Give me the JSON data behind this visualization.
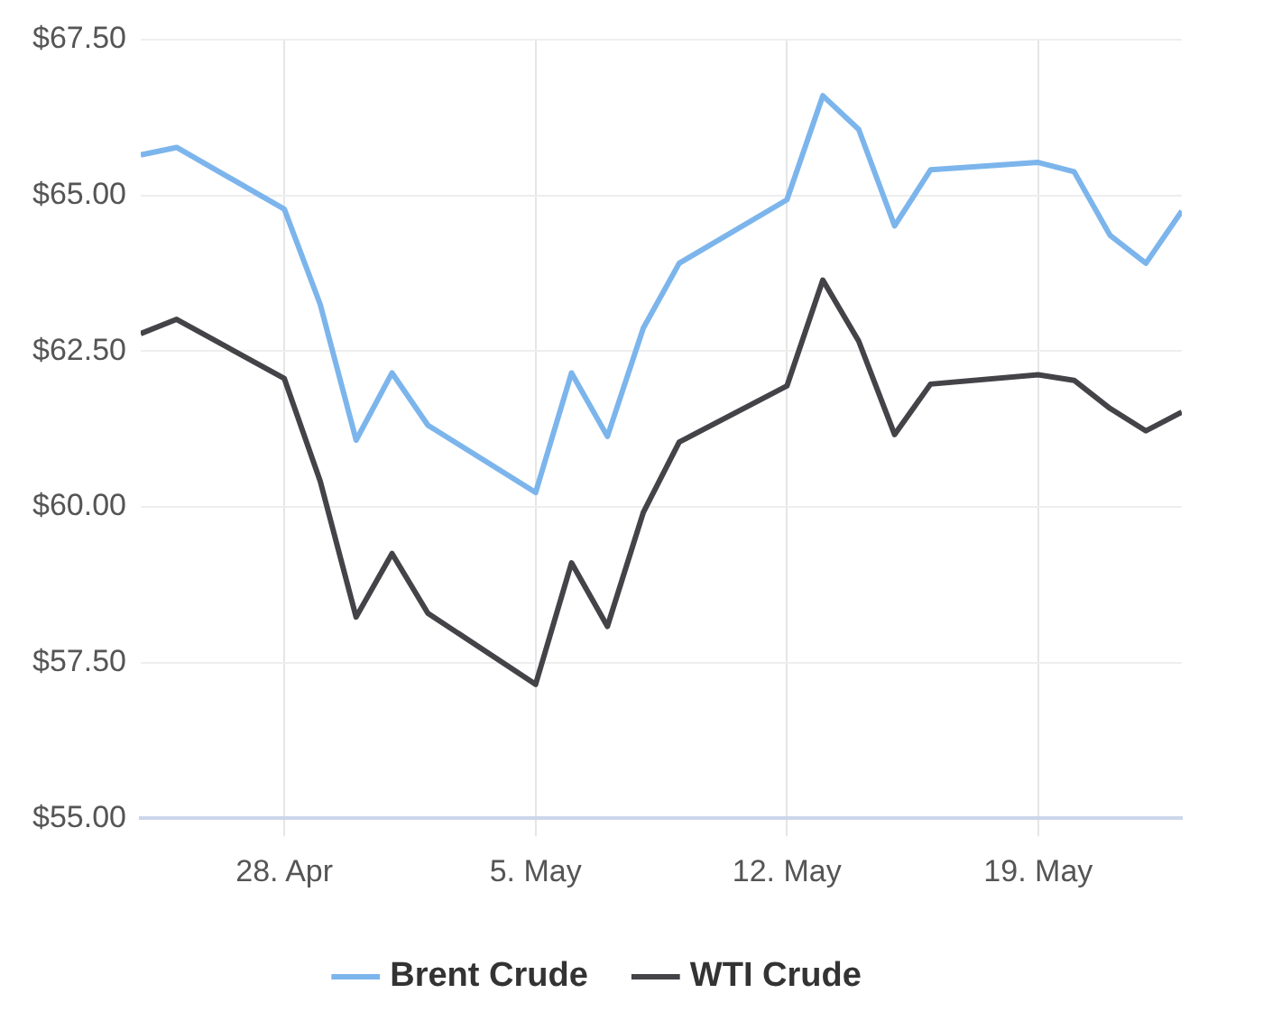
{
  "chart_data": {
    "type": "line",
    "x": [
      "--04-24",
      "--04-25",
      "--04-28",
      "--04-29",
      "--04-30",
      "--05-01",
      "--05-02",
      "--05-05",
      "--05-06",
      "--05-07",
      "--05-08",
      "--05-09",
      "--05-12",
      "--05-13",
      "--05-14",
      "--05-15",
      "--05-16",
      "--05-19",
      "--05-20",
      "--05-21",
      "--05-22",
      "--05-23"
    ],
    "series": [
      {
        "name": "Brent Crude",
        "color": "#7cb5ec",
        "values": [
          65.65,
          65.77,
          64.78,
          63.25,
          61.07,
          62.15,
          61.31,
          60.23,
          62.15,
          61.13,
          62.87,
          63.91,
          64.93,
          66.6,
          66.06,
          64.51,
          65.41,
          65.53,
          65.38,
          64.36,
          63.91,
          64.75
        ]
      },
      {
        "name": "WTI Crude",
        "color": "#434348",
        "values": [
          62.78,
          63.01,
          62.06,
          60.41,
          58.23,
          59.25,
          58.29,
          57.15,
          59.1,
          58.08,
          59.91,
          61.04,
          61.94,
          63.64,
          62.66,
          61.16,
          61.97,
          62.12,
          62.03,
          61.58,
          61.22,
          61.52
        ]
      }
    ],
    "xlim": [
      "--04-24",
      "--05-23"
    ],
    "xticks": [
      {
        "value": "--04-28",
        "label": "28. Apr"
      },
      {
        "value": "--05-05",
        "label": "5. May"
      },
      {
        "value": "--05-12",
        "label": "12. May"
      },
      {
        "value": "--05-19",
        "label": "19. May"
      }
    ],
    "ylim": [
      55,
      67.5
    ],
    "yticks": [
      {
        "value": 55,
        "label": "$55.00"
      },
      {
        "value": 57.5,
        "label": "$57.50"
      },
      {
        "value": 60,
        "label": "$60.00"
      },
      {
        "value": 62.5,
        "label": "$62.50"
      },
      {
        "value": 65,
        "label": "$65.00"
      },
      {
        "value": 67.5,
        "label": "$67.50"
      }
    ],
    "grid": true,
    "legend": "bottom",
    "marker": "none",
    "line_style": "solid"
  }
}
